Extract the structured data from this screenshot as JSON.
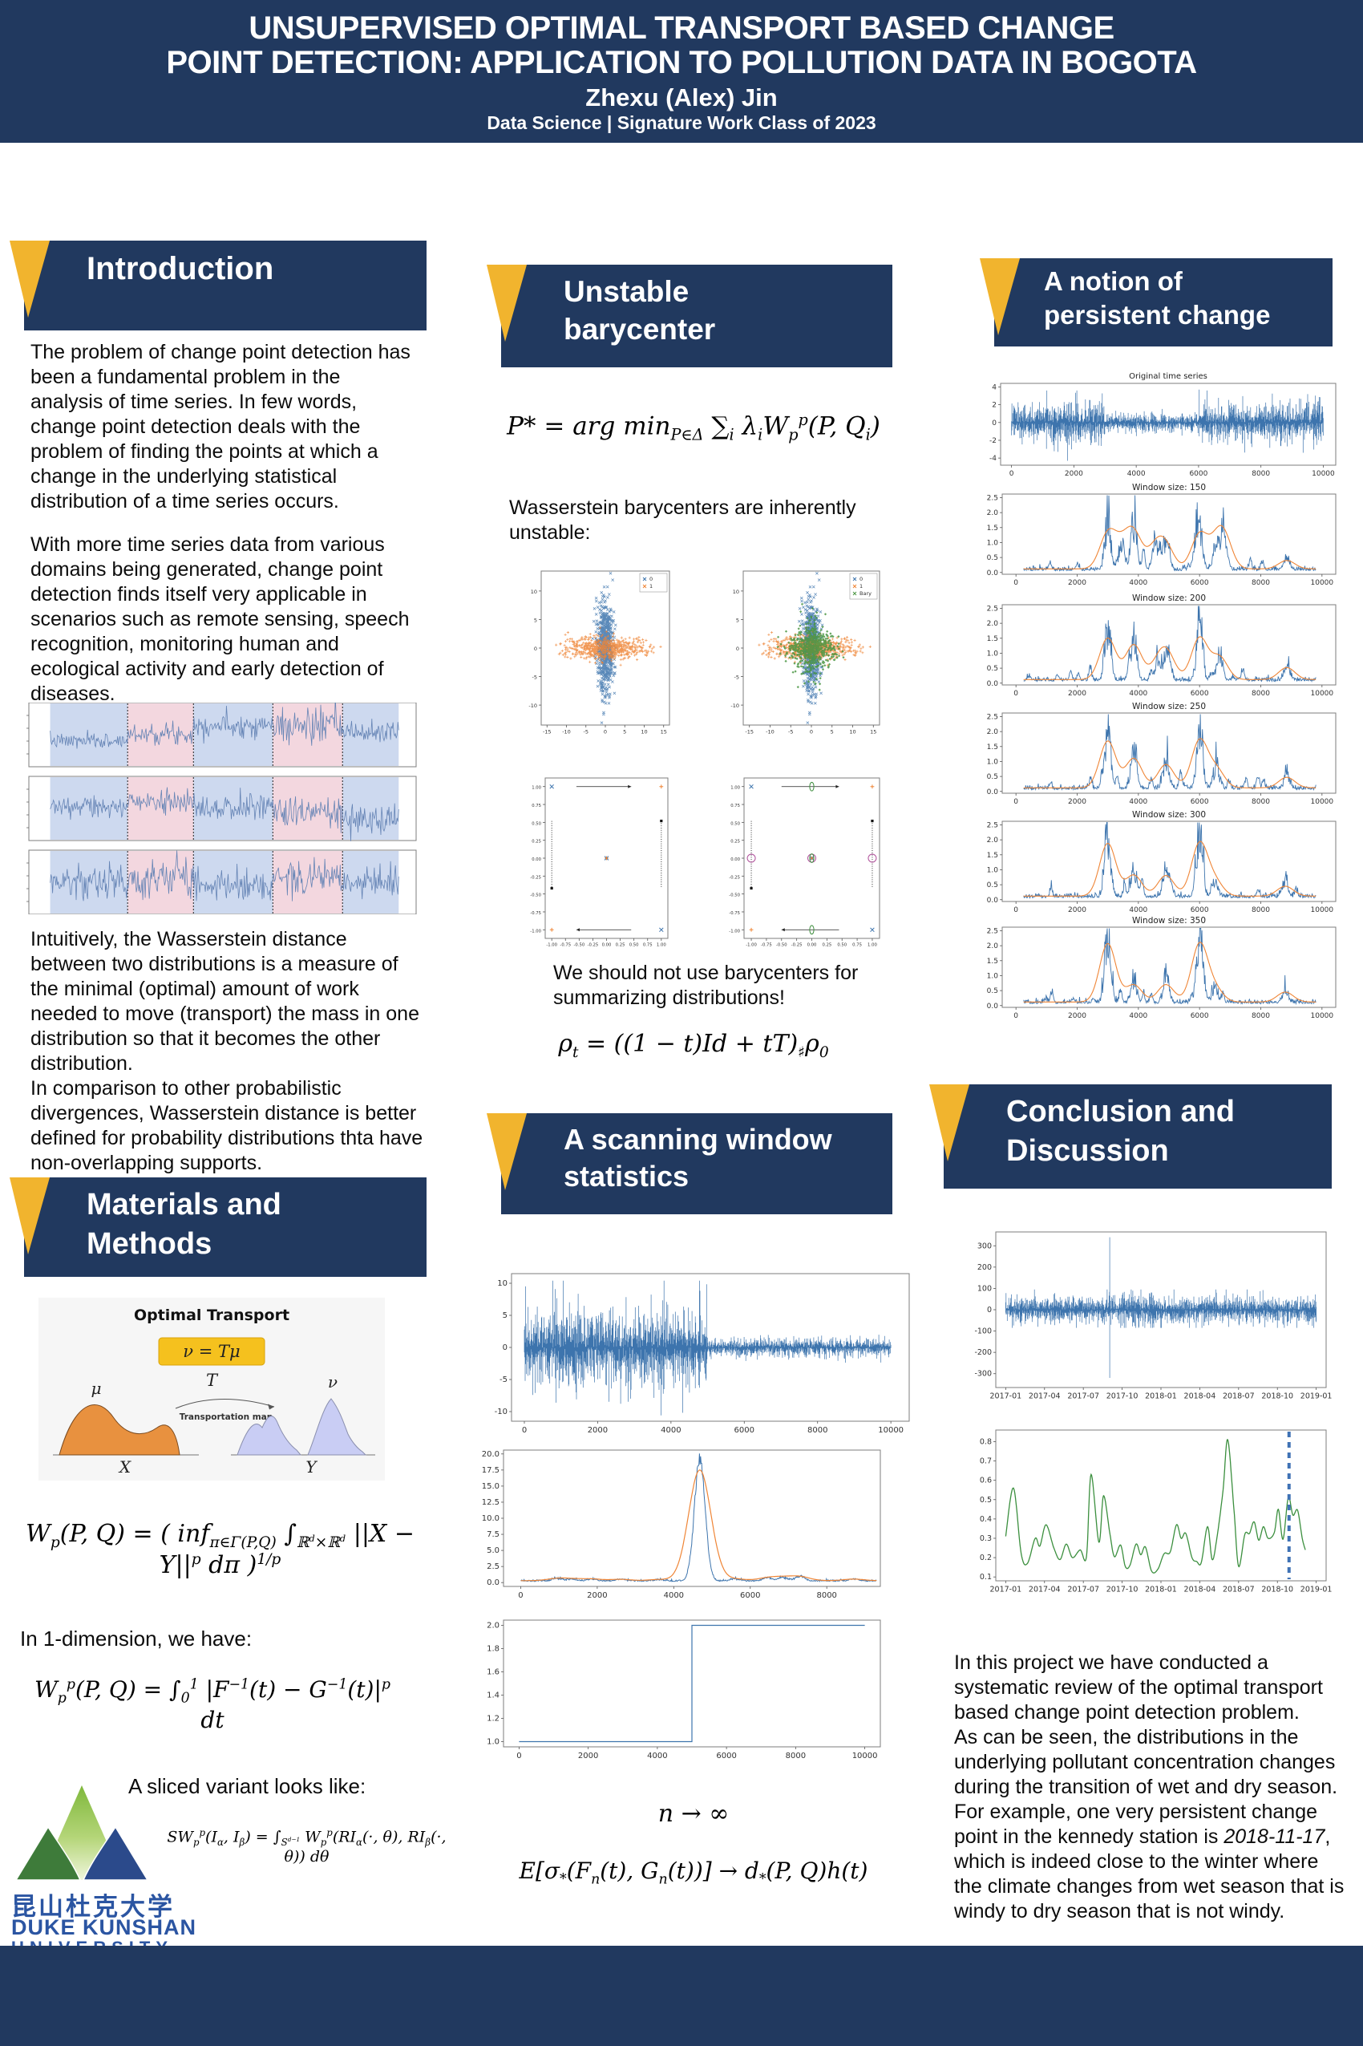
{
  "header": {
    "title_line1": "UNSUPERVISED OPTIMAL TRANSPORT BASED CHANGE",
    "title_line2": "POINT DETECTION: APPLICATION TO POLLUTION DATA IN BOGOTA",
    "author": "Zhexu (Alex) Jin",
    "subtitle": "Data Science | Signature Work Class of 2023"
  },
  "accent": {
    "navy": "#21395f",
    "yellow": "#f1b42e"
  },
  "sections": {
    "introduction": {
      "title": "Introduction",
      "p1": "The problem of change point detection has been a fundamental problem in the analysis of time series. In few words, change point detection deals with the problem of finding the points at which a change in the underlying statistical distribution of a time series occurs.",
      "p2": "With more time series data from various domains being generated, change point detection finds itself very applicable in scenarios such as remote sensing, speech recognition, monitoring human and ecological activity and early detection of diseases.",
      "p3a": "Intuitively, the Wasserstein distance between two distributions is a measure of the minimal (optimal) amount of work needed to move (transport) the mass in one distribution so that it becomes the other distribution.",
      "p3b": "In comparison to other probabilistic divergences, Wasserstein distance is better defined for probability distributions thta have non-overlapping supports."
    },
    "materials": {
      "title_line1": "Materials and",
      "title_line2": "Methods",
      "in1d": "In 1-dimension, we have:",
      "sliced": "A sliced variant looks like:"
    },
    "unstable": {
      "title_line1": "Unstable",
      "title_line2": "barycenter",
      "note1": "Wasserstein barycenters are inherently unstable:",
      "note2": "We should not use barycenters for summarizing distributions!"
    },
    "scanning": {
      "title_line1": "A scanning window",
      "title_line2": "statistics"
    },
    "persistent": {
      "title_line1": "A notion of",
      "title_line2": "persistent change"
    },
    "conclusion": {
      "title_line1": "Conclusion and",
      "title_line2": "Discussion",
      "p1": "In this project we have conducted a systematic review of the optimal transport based change point detection problem.",
      "p2": "As can be seen, the distributions in the underlying pollutant concentration changes during the transition of wet and dry season.",
      "p3_pre": "For example, one very persistent change point in the kennedy station is ",
      "p3_date": "2018-11-17",
      "p3_post": ", which is indeed close to the winter where the climate changes from wet season that is windy to dry season that is not windy."
    }
  },
  "formulas": {
    "barycenter": "P* = arg min_{P∈Δ} ∑_{i} λ_{i}W_{p}^{p}(P, Q_{i})",
    "rho": "ρ_{t} = ((1 − t)Id + tT)_{♯}ρ_{0}",
    "wasserstein": "W_{p}(P, Q) = ( inf_{π∈Γ(P,Q)} ∫_{ℝ^{d}×ℝ^{d}} ||X − Y||^{p} dπ )^{1/p}",
    "w1d": "W_{p}^{p}(P, Q) = ∫_{0}^{1} |F^{−1}(t) − G^{−1}(t)|^{p} dt",
    "sliced": "SW_{p}^{p}(I_{α}, I_{β}) = ∫_{S^{d−1}} W_{p}^{p}(RI_{α}(·, θ), RI_{β}(·, θ)) dθ",
    "n_inf": "n → ∞",
    "expectation": "E[σ_{*}(F_{n}(t), G_{n}(t))] → d_{*}(P, Q)h(t)",
    "ot_map": "ν = T_{#}μ"
  },
  "ot_figure": {
    "title": "Optimal Transport",
    "mu": "μ",
    "nu": "ν",
    "T": "T",
    "map_label": "Transportation map",
    "X": "X",
    "Y": "Y"
  },
  "logo": {
    "cn": "昆山杜克大学",
    "en1": "DUKE KUNSHAN",
    "en2": "UNIVERSITY"
  },
  "chart_data": {
    "segmented_series": {
      "type": "line",
      "panels": 3,
      "band_bounds": [
        0.055,
        0.255,
        0.425,
        0.63,
        0.81,
        0.955
      ],
      "band_colors": [
        "#cdd9ef",
        "#f3d7df"
      ],
      "line_color": "#6584b5",
      "ylim": [
        -3,
        3
      ],
      "segment_means": [
        [
          -0.6,
          0.1,
          0.9,
          0.8,
          0.2
        ],
        [
          0.2,
          0.6,
          0.1,
          -0.4,
          -1.0
        ],
        [
          0.0,
          0.3,
          -0.2,
          0.4,
          -0.1
        ]
      ],
      "segment_amps": [
        [
          0.35,
          0.5,
          0.55,
          0.85,
          0.5
        ],
        [
          0.45,
          0.55,
          0.6,
          0.7,
          0.65
        ],
        [
          0.75,
          0.95,
          0.85,
          0.85,
          0.65
        ]
      ]
    },
    "bary_scatter_a": {
      "type": "scatter",
      "x_ticks": [
        -15,
        -10,
        -5,
        0,
        5,
        10,
        15
      ],
      "y_ticks": [
        -10,
        -5,
        0,
        5,
        10
      ],
      "xlim": [
        -16.5,
        16.5
      ],
      "ylim": [
        -13.5,
        13.5
      ],
      "series": [
        {
          "name": "0",
          "color": "#3d74ad",
          "marker": "x",
          "n": 650,
          "sx": 1.0,
          "sy": 4.0
        },
        {
          "name": "1",
          "color": "#ef8536",
          "marker": "+",
          "n": 650,
          "sx": 4.8,
          "sy": 0.95
        }
      ]
    },
    "bary_scatter_b": {
      "type": "scatter",
      "x_ticks": [
        -15,
        -10,
        -5,
        0,
        5,
        10,
        15
      ],
      "y_ticks": [
        -10,
        -5,
        0,
        5,
        10
      ],
      "xlim": [
        -16.5,
        16.5
      ],
      "ylim": [
        -13.5,
        13.5
      ],
      "series": [
        {
          "name": "0",
          "color": "#3d74ad",
          "marker": "x",
          "n": 650,
          "sx": 1.0,
          "sy": 4.0
        },
        {
          "name": "1",
          "color": "#ef8536",
          "marker": "+",
          "n": 650,
          "sx": 4.8,
          "sy": 0.95
        },
        {
          "name": "Bary",
          "color": "#4a9642",
          "marker": "d",
          "n": 650,
          "sx": 2.1,
          "sy": 2.6
        }
      ]
    },
    "bary_geo_a": {
      "type": "annotated",
      "extras": false,
      "ticks": [
        -1,
        -0.75,
        -0.5,
        -0.25,
        0,
        0.25,
        0.5,
        0.75,
        1
      ],
      "corners": [
        {
          "x": -1,
          "y": 1,
          "m": "x"
        },
        {
          "x": 1,
          "y": 1,
          "m": "+"
        },
        {
          "x": -1,
          "y": -1,
          "m": "+"
        },
        {
          "x": 1,
          "y": -1,
          "m": "x"
        }
      ],
      "arrows": [
        {
          "y": 1,
          "from": -0.55,
          "to": 0.45
        },
        {
          "y": -1,
          "from": 0.45,
          "to": -0.55
        }
      ],
      "dotted": [
        {
          "x": -1,
          "top": 0.52,
          "bot": -0.42,
          "dot": "bot"
        },
        {
          "x": 1,
          "top": 0.52,
          "bot": -0.42,
          "dot": "top"
        }
      ]
    },
    "bary_geo_b": {
      "type": "annotated",
      "extras": true,
      "ticks": [
        -1,
        -0.75,
        -0.5,
        -0.25,
        0,
        0.25,
        0.5,
        0.75,
        1
      ],
      "corners": [
        {
          "x": -1,
          "y": 1,
          "m": "x"
        },
        {
          "x": 1,
          "y": 1,
          "m": "+"
        },
        {
          "x": -1,
          "y": -1,
          "m": "+"
        },
        {
          "x": 1,
          "y": -1,
          "m": "x"
        }
      ],
      "arrows": [
        {
          "y": 1,
          "from": -0.5,
          "to": 0.45
        },
        {
          "y": -1,
          "from": 0.45,
          "to": -0.5
        }
      ],
      "dotted": [
        {
          "x": -1,
          "top": 0.52,
          "bot": -0.42,
          "dot": "bot"
        },
        {
          "x": 1,
          "top": 0.52,
          "bot": -0.42,
          "dot": "top"
        }
      ],
      "circle_color": "#b0509b",
      "ellipse_color": "#3f8f3f"
    },
    "scan_signal": {
      "type": "line",
      "change_x": 5000,
      "amp_before": 2.9,
      "amp_after": 0.8,
      "x_ticks": [
        0,
        2000,
        4000,
        6000,
        8000,
        10000
      ],
      "y_ticks": [
        10,
        5,
        0,
        -5,
        -10
      ],
      "xlim": [
        -350,
        10500
      ],
      "ylim": [
        -11.5,
        11.5
      ],
      "color": "#3d74ad"
    },
    "scan_stat": {
      "type": "line_smooth",
      "peak_x": 4680,
      "blue_peak": 19.4,
      "orange_peak": 17.2,
      "y_ticks": [
        20,
        17.5,
        15,
        12.5,
        10,
        7.5,
        5,
        2.5,
        0
      ],
      "x_ticks": [
        0,
        2000,
        4000,
        6000,
        8000
      ],
      "xlim": [
        -450,
        9400
      ],
      "ylim": [
        -0.6,
        20.6
      ],
      "colors": [
        "#3d74ad",
        "#ef8536"
      ],
      "bumps": [
        [
          950,
          0.4
        ],
        [
          1350,
          0.28
        ],
        [
          1850,
          0.32
        ],
        [
          2600,
          0.26
        ],
        [
          3600,
          0.22
        ],
        [
          5600,
          0.33
        ],
        [
          6450,
          0.5
        ],
        [
          6850,
          0.55
        ],
        [
          7300,
          0.75
        ],
        [
          8700,
          0.3
        ]
      ]
    },
    "scan_step": {
      "type": "step",
      "step_x": 5000,
      "y_from": 1.0,
      "y_to": 2.0,
      "y_ticks": [
        2,
        1.8,
        1.6,
        1.4,
        1.2,
        1
      ],
      "x_ticks": [
        0,
        2000,
        4000,
        6000,
        8000,
        10000
      ],
      "xlim": [
        -450,
        10450
      ],
      "ylim": [
        0.955,
        2.045
      ],
      "color": "#3d74ad"
    },
    "original_ts": {
      "type": "line",
      "title": "Original time series",
      "y_ticks": [
        4,
        2,
        0,
        -2,
        -4
      ],
      "x_ticks": [
        0,
        2000,
        4000,
        6000,
        8000,
        10000
      ],
      "xlim": [
        -350,
        10400
      ],
      "ylim": [
        -4.8,
        4.4
      ],
      "color": "#3d74ad",
      "segments": [
        {
          "end": 0.3,
          "amp": 1.15
        },
        {
          "end": 0.6,
          "amp": 0.55
        },
        {
          "end": 1.0,
          "amp": 1.2
        }
      ],
      "spikes": [
        {
          "p": 0.18,
          "v": -4.3
        },
        {
          "p": 0.602,
          "v": 3.7
        }
      ]
    },
    "window_common": {
      "y_ticks": [
        2.5,
        2,
        1.5,
        1,
        0.5,
        0
      ],
      "x_ticks": [
        0,
        2000,
        4000,
        6000,
        8000,
        10000
      ],
      "xlim": [
        -450,
        10450
      ],
      "ylim": [
        -0.06,
        2.62
      ],
      "colors": [
        "#3d74ad",
        "#ef8536"
      ]
    },
    "window_plots": [
      {
        "title": "Window size: 150",
        "seed": 11,
        "peaks": [
          [
            3000,
            1.15
          ],
          [
            3450,
            0.62
          ],
          [
            3850,
            1.15
          ],
          [
            4550,
            0.66
          ],
          [
            4900,
            0.7
          ],
          [
            6000,
            1.15
          ],
          [
            6550,
            0.62
          ],
          [
            6800,
            0.95
          ],
          [
            8850,
            0.28
          ]
        ]
      },
      {
        "title": "Window size: 200",
        "seed": 22,
        "peaks": [
          [
            3000,
            1.38
          ],
          [
            3850,
            1.16
          ],
          [
            4650,
            0.5
          ],
          [
            4950,
            0.77
          ],
          [
            6000,
            1.39
          ],
          [
            6650,
            0.75
          ],
          [
            8850,
            0.4
          ]
        ]
      },
      {
        "title": "Window size: 250",
        "seed": 33,
        "peaks": [
          [
            3000,
            1.56
          ],
          [
            3850,
            0.98
          ],
          [
            4900,
            0.78
          ],
          [
            6000,
            1.57
          ],
          [
            6550,
            0.6
          ],
          [
            8850,
            0.35
          ]
        ]
      },
      {
        "title": "Window size: 300",
        "seed": 44,
        "peaks": [
          [
            3000,
            1.76
          ],
          [
            3850,
            0.7
          ],
          [
            4900,
            0.69
          ],
          [
            6000,
            1.74
          ],
          [
            6500,
            0.47
          ],
          [
            8800,
            0.33
          ]
        ]
      },
      {
        "title": "Window size: 350",
        "seed": 55,
        "peaks": [
          [
            3000,
            1.95
          ],
          [
            3850,
            0.57
          ],
          [
            4900,
            0.58
          ],
          [
            6000,
            1.92
          ],
          [
            6500,
            0.42
          ],
          [
            8800,
            0.33
          ]
        ]
      }
    ],
    "kennedy_ts": {
      "type": "line",
      "y_ticks": [
        300,
        200,
        100,
        0,
        -100,
        -200,
        -300
      ],
      "x_ticks": [
        "2017-01",
        "2017-04",
        "2017-07",
        "2017-10",
        "2018-01",
        "2018-04",
        "2018-07",
        "2018-10",
        "2019-01"
      ],
      "ylim": [
        -365,
        365
      ],
      "amp": 33,
      "spike_frac": 0.335,
      "spike_up": 340,
      "spike_down": -320,
      "color": "#3d74ad"
    },
    "kennedy_stat": {
      "type": "line",
      "y_ticks": [
        0.8,
        0.7,
        0.6,
        0.5,
        0.4,
        0.3,
        0.2,
        0.1
      ],
      "x_ticks": [
        "2017-01",
        "2017-04",
        "2017-07",
        "2017-10",
        "2018-01",
        "2018-04",
        "2018-07",
        "2018-10",
        "2019-01"
      ],
      "ylim": [
        0.08,
        0.86
      ],
      "color": "#3b8f3e",
      "vline_frac": 0.9125,
      "vline_color": "#3f72b5",
      "points": [
        [
          0.0,
          0.31
        ],
        [
          0.025,
          0.56
        ],
        [
          0.05,
          0.22
        ],
        [
          0.07,
          0.17
        ],
        [
          0.095,
          0.3
        ],
        [
          0.11,
          0.26
        ],
        [
          0.13,
          0.37
        ],
        [
          0.155,
          0.25
        ],
        [
          0.175,
          0.19
        ],
        [
          0.195,
          0.27
        ],
        [
          0.215,
          0.2
        ],
        [
          0.24,
          0.24
        ],
        [
          0.26,
          0.205
        ],
        [
          0.275,
          0.63
        ],
        [
          0.3,
          0.28
        ],
        [
          0.315,
          0.52
        ],
        [
          0.335,
          0.33
        ],
        [
          0.35,
          0.205
        ],
        [
          0.37,
          0.265
        ],
        [
          0.385,
          0.155
        ],
        [
          0.4,
          0.16
        ],
        [
          0.42,
          0.27
        ],
        [
          0.435,
          0.215
        ],
        [
          0.45,
          0.255
        ],
        [
          0.47,
          0.13
        ],
        [
          0.49,
          0.14
        ],
        [
          0.51,
          0.22
        ],
        [
          0.53,
          0.23
        ],
        [
          0.55,
          0.37
        ],
        [
          0.565,
          0.3
        ],
        [
          0.58,
          0.325
        ],
        [
          0.6,
          0.2
        ],
        [
          0.615,
          0.18
        ],
        [
          0.63,
          0.175
        ],
        [
          0.65,
          0.36
        ],
        [
          0.665,
          0.19
        ],
        [
          0.68,
          0.3
        ],
        [
          0.7,
          0.55
        ],
        [
          0.715,
          0.81
        ],
        [
          0.735,
          0.45
        ],
        [
          0.75,
          0.155
        ],
        [
          0.77,
          0.32
        ],
        [
          0.785,
          0.325
        ],
        [
          0.8,
          0.385
        ],
        [
          0.815,
          0.29
        ],
        [
          0.83,
          0.36
        ],
        [
          0.845,
          0.3
        ],
        [
          0.865,
          0.33
        ],
        [
          0.878,
          0.45
        ],
        [
          0.893,
          0.295
        ],
        [
          0.91,
          0.51
        ],
        [
          0.925,
          0.42
        ],
        [
          0.94,
          0.445
        ],
        [
          0.955,
          0.3
        ],
        [
          0.965,
          0.24
        ]
      ]
    }
  }
}
